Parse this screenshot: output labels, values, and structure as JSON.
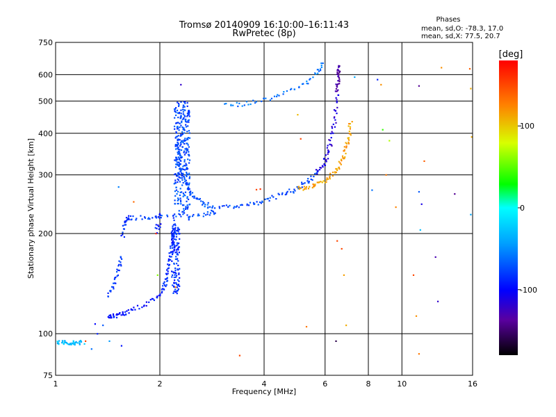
{
  "chart_data": {
    "type": "scatter",
    "title": "Tromsø 20140909 16:10:00–16:11:43",
    "subtitle": "RwPretec (8p)",
    "xlabel": "Frequency [MHz]",
    "ylabel": "Stationary phase Virtual Height [km]",
    "xscale": "log",
    "yscale": "log",
    "xlim": [
      1,
      16
    ],
    "ylim": [
      75,
      750
    ],
    "grid": true,
    "x_ticks": [
      1,
      2,
      4,
      6,
      8,
      10,
      16
    ],
    "x_tick_labels": [
      "1",
      "2",
      "4",
      "6",
      "8",
      "10",
      "16"
    ],
    "y_ticks": [
      75,
      100,
      200,
      300,
      400,
      500,
      600,
      750
    ],
    "y_tick_labels": [
      "75",
      "100",
      "200",
      "300",
      "400",
      "500",
      "600",
      "750"
    ],
    "stats": {
      "heading": "Phases",
      "line_o": "mean, sd,O: -78.3, 17.0",
      "line_x": "mean, sd,X:  77.5, 20.7"
    },
    "colorbar": {
      "label": "[deg]",
      "range": [
        -180,
        180
      ],
      "ticks": [
        100,
        0,
        -100
      ],
      "tick_labels": [
        "100",
        "0",
        "-100"
      ]
    },
    "traces": [
      {
        "x": [
          1.0,
          1.1,
          1.2
        ],
        "y": [
          94,
          94,
          94
        ],
        "phase": -30,
        "n": 45
      },
      {
        "x": [
          1.42,
          1.46,
          1.52,
          1.6,
          1.75,
          1.95,
          2.05
        ],
        "y": [
          113,
          113,
          114,
          116,
          120,
          128,
          135
        ],
        "phase": -95,
        "n": 60
      },
      {
        "x": [
          1.42,
          1.47,
          1.52,
          1.56
        ],
        "y": [
          128,
          142,
          156,
          170
        ],
        "phase": -80,
        "n": 30
      },
      {
        "x": [
          1.56,
          1.58,
          1.62,
          1.7
        ],
        "y": [
          196,
          215,
          224,
          222
        ],
        "phase": -85,
        "n": 28
      },
      {
        "x": [
          1.75,
          2.05,
          2.6,
          2.9
        ],
        "y": [
          223,
          225,
          228,
          232
        ],
        "phase": -75,
        "n": 40
      },
      {
        "x": [
          2.05,
          2.1,
          2.15,
          2.18,
          2.2
        ],
        "y": [
          135,
          150,
          170,
          190,
          220
        ],
        "phase": -85,
        "n": 60
      },
      {
        "x": [
          2.9,
          3.3,
          3.7,
          4.1,
          4.6,
          5.0,
          5.4,
          5.7
        ],
        "y": [
          240,
          242,
          246,
          253,
          263,
          274,
          288,
          305
        ],
        "phase": -75,
        "n": 75
      },
      {
        "x": [
          5.7,
          6.0,
          6.2,
          6.4,
          6.5
        ],
        "y": [
          305,
          330,
          370,
          440,
          530
        ],
        "phase": -115,
        "n": 55
      },
      {
        "x": [
          6.5,
          6.55,
          6.6
        ],
        "y": [
          530,
          590,
          640
        ],
        "phase": -135,
        "n": 30
      },
      {
        "x": [
          5.0,
          5.5,
          6.0,
          6.5,
          6.8,
          7.0,
          7.1
        ],
        "y": [
          272,
          278,
          290,
          310,
          340,
          380,
          430
        ],
        "phase": 115,
        "n": 80
      },
      {
        "x": [
          3.1,
          3.5,
          4.0,
          4.6,
          5.2,
          5.7,
          5.9
        ],
        "y": [
          485,
          490,
          505,
          530,
          560,
          610,
          650
        ],
        "phase": -60,
        "n": 55
      },
      {
        "x": [
          2.25,
          2.28,
          2.32,
          2.38,
          2.45
        ],
        "y": [
          370,
          330,
          300,
          280,
          265
        ],
        "phase": -75,
        "n": 55
      },
      {
        "x": [
          2.45,
          2.55,
          2.7,
          2.85
        ],
        "y": [
          265,
          255,
          245,
          238
        ],
        "phase": -70,
        "n": 30
      }
    ],
    "points": [
      {
        "x": 2.32,
        "y": 360,
        "dx": 0.12,
        "dy": 140,
        "phase": -75,
        "n": 300
      },
      {
        "x": 2.22,
        "y": 170,
        "dx": 0.06,
        "dy": 40,
        "phase": -85,
        "n": 120
      },
      {
        "x": 1.98,
        "y": 215,
        "dx": 0.04,
        "dy": 15,
        "phase": -90,
        "n": 15
      },
      {
        "x": 1.52,
        "y": 276,
        "phase": -55
      },
      {
        "x": 1.68,
        "y": 249,
        "phase": 135
      },
      {
        "x": 1.95,
        "y": 200,
        "phase": 160
      },
      {
        "x": 1.97,
        "y": 150,
        "phase": 60
      },
      {
        "x": 2.22,
        "y": 138,
        "phase": 130
      },
      {
        "x": 2.3,
        "y": 560,
        "phase": -120
      },
      {
        "x": 1.3,
        "y": 107,
        "phase": -100
      },
      {
        "x": 1.37,
        "y": 106,
        "phase": -70
      },
      {
        "x": 1.43,
        "y": 95,
        "phase": -45
      },
      {
        "x": 1.27,
        "y": 90,
        "phase": -60
      },
      {
        "x": 1.22,
        "y": 95,
        "phase": 150
      },
      {
        "x": 1.55,
        "y": 92,
        "phase": -95
      },
      {
        "x": 1.32,
        "y": 100,
        "phase": -90
      },
      {
        "x": 3.4,
        "y": 86,
        "phase": 150
      },
      {
        "x": 3.8,
        "y": 271,
        "phase": 150
      },
      {
        "x": 3.9,
        "y": 272,
        "phase": 160
      },
      {
        "x": 5.1,
        "y": 385,
        "phase": 150
      },
      {
        "x": 5.0,
        "y": 455,
        "phase": 105
      },
      {
        "x": 5.3,
        "y": 105,
        "phase": 130
      },
      {
        "x": 6.45,
        "y": 95,
        "phase": -160
      },
      {
        "x": 6.5,
        "y": 190,
        "phase": 150
      },
      {
        "x": 6.7,
        "y": 180,
        "phase": 150
      },
      {
        "x": 6.8,
        "y": 150,
        "phase": 115
      },
      {
        "x": 6.9,
        "y": 106,
        "phase": 110
      },
      {
        "x": 7.3,
        "y": 590,
        "phase": -40
      },
      {
        "x": 8.5,
        "y": 580,
        "phase": -90
      },
      {
        "x": 8.2,
        "y": 270,
        "phase": -60
      },
      {
        "x": 8.7,
        "y": 560,
        "phase": 120
      },
      {
        "x": 8.8,
        "y": 410,
        "phase": 40
      },
      {
        "x": 9.2,
        "y": 380,
        "phase": 70
      },
      {
        "x": 9.0,
        "y": 300,
        "phase": 130
      },
      {
        "x": 9.6,
        "y": 240,
        "phase": 125
      },
      {
        "x": 11.2,
        "y": 555,
        "phase": -140
      },
      {
        "x": 11.2,
        "y": 267,
        "phase": -70
      },
      {
        "x": 11.4,
        "y": 245,
        "phase": -110
      },
      {
        "x": 11.3,
        "y": 205,
        "phase": -30
      },
      {
        "x": 11.6,
        "y": 330,
        "phase": 140
      },
      {
        "x": 10.8,
        "y": 150,
        "phase": 150
      },
      {
        "x": 11.0,
        "y": 113,
        "phase": 120
      },
      {
        "x": 11.2,
        "y": 87,
        "phase": 130
      },
      {
        "x": 12.5,
        "y": 170,
        "phase": -130
      },
      {
        "x": 12.7,
        "y": 125,
        "phase": -120
      },
      {
        "x": 13.0,
        "y": 630,
        "phase": 120
      },
      {
        "x": 14.2,
        "y": 263,
        "phase": -140
      },
      {
        "x": 15.7,
        "y": 625,
        "phase": 140
      },
      {
        "x": 15.8,
        "y": 545,
        "phase": 110
      },
      {
        "x": 15.9,
        "y": 390,
        "phase": 110
      },
      {
        "x": 15.8,
        "y": 228,
        "phase": -40
      }
    ]
  }
}
